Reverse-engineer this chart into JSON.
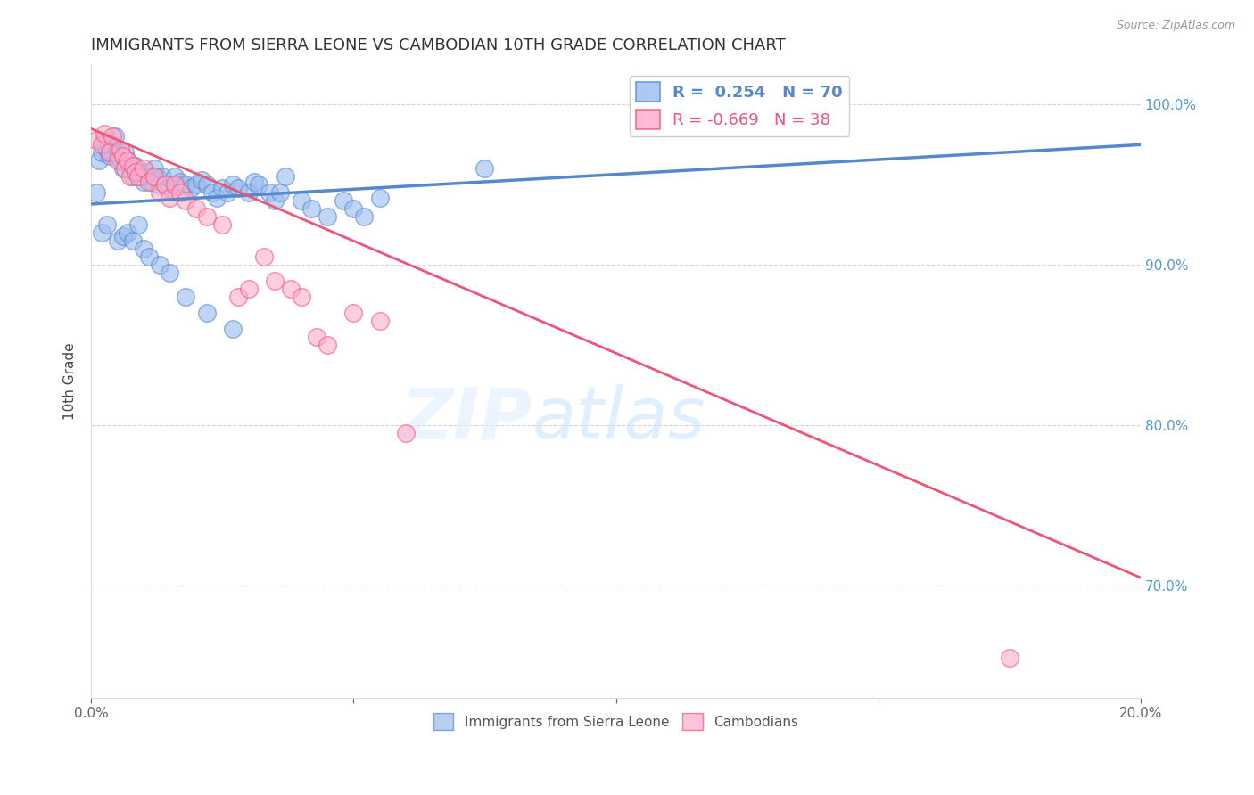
{
  "title": "IMMIGRANTS FROM SIERRA LEONE VS CAMBODIAN 10TH GRADE CORRELATION CHART",
  "source": "Source: ZipAtlas.com",
  "ylabel": "10th Grade",
  "xlim": [
    0.0,
    20.0
  ],
  "ylim": [
    63.0,
    102.5
  ],
  "yticks": [
    70.0,
    80.0,
    90.0,
    100.0
  ],
  "ytick_labels": [
    "70.0%",
    "80.0%",
    "90.0%",
    "100.0%"
  ],
  "blue_color": "#5588CC",
  "pink_color": "#EE5577",
  "blue_fill": "#99BBEE",
  "pink_fill": "#FFAACC",
  "legend_R_blue": "0.254",
  "legend_N_blue": "70",
  "legend_R_pink": "-0.669",
  "legend_N_pink": "38",
  "watermark_zip": "ZIP",
  "watermark_atlas": "atlas",
  "blue_scatter_x": [
    0.1,
    0.15,
    0.2,
    0.25,
    0.3,
    0.35,
    0.4,
    0.45,
    0.5,
    0.55,
    0.6,
    0.65,
    0.7,
    0.75,
    0.8,
    0.85,
    0.9,
    0.95,
    1.0,
    1.05,
    1.1,
    1.15,
    1.2,
    1.25,
    1.3,
    1.35,
    1.4,
    1.5,
    1.6,
    1.7,
    1.8,
    1.9,
    2.0,
    2.1,
    2.2,
    2.3,
    2.4,
    2.5,
    2.6,
    2.7,
    2.8,
    3.0,
    3.1,
    3.2,
    3.4,
    3.5,
    3.6,
    3.7,
    4.0,
    4.2,
    4.5,
    4.8,
    5.0,
    5.2,
    5.5,
    0.2,
    0.3,
    0.5,
    0.6,
    0.7,
    0.8,
    0.9,
    1.0,
    1.1,
    1.3,
    1.5,
    1.8,
    2.2,
    2.7,
    7.5
  ],
  "blue_scatter_y": [
    94.5,
    96.5,
    97.0,
    97.5,
    97.2,
    96.8,
    97.5,
    98.0,
    97.0,
    96.5,
    96.0,
    97.0,
    96.5,
    96.0,
    95.5,
    96.2,
    95.8,
    95.5,
    95.2,
    95.8,
    95.5,
    95.2,
    96.0,
    95.5,
    95.0,
    95.5,
    95.0,
    94.8,
    95.5,
    95.2,
    95.0,
    94.8,
    95.0,
    95.3,
    95.0,
    94.5,
    94.2,
    94.8,
    94.5,
    95.0,
    94.8,
    94.5,
    95.2,
    95.0,
    94.5,
    94.0,
    94.5,
    95.5,
    94.0,
    93.5,
    93.0,
    94.0,
    93.5,
    93.0,
    94.2,
    92.0,
    92.5,
    91.5,
    91.8,
    92.0,
    91.5,
    92.5,
    91.0,
    90.5,
    90.0,
    89.5,
    88.0,
    87.0,
    86.0,
    96.0
  ],
  "pink_scatter_x": [
    0.1,
    0.2,
    0.25,
    0.35,
    0.4,
    0.5,
    0.55,
    0.6,
    0.65,
    0.7,
    0.75,
    0.8,
    0.85,
    0.9,
    1.0,
    1.1,
    1.2,
    1.3,
    1.4,
    1.5,
    1.6,
    1.7,
    1.8,
    2.0,
    2.2,
    2.5,
    2.8,
    3.0,
    3.3,
    3.5,
    3.8,
    4.0,
    4.3,
    4.5,
    5.0,
    5.5,
    6.0,
    17.5
  ],
  "pink_scatter_y": [
    97.8,
    97.5,
    98.2,
    97.0,
    98.0,
    96.5,
    97.2,
    96.8,
    96.0,
    96.5,
    95.5,
    96.2,
    95.8,
    95.5,
    96.0,
    95.2,
    95.5,
    94.5,
    95.0,
    94.2,
    95.0,
    94.5,
    94.0,
    93.5,
    93.0,
    92.5,
    88.0,
    88.5,
    90.5,
    89.0,
    88.5,
    88.0,
    85.5,
    85.0,
    87.0,
    86.5,
    79.5,
    65.5
  ],
  "blue_line_x": [
    0.0,
    20.0
  ],
  "blue_line_y": [
    93.8,
    97.5
  ],
  "pink_line_x": [
    0.0,
    20.0
  ],
  "pink_line_y": [
    98.5,
    70.5
  ],
  "bg_color": "#FFFFFF",
  "grid_color": "#CCCCCC",
  "title_color": "#333333",
  "axis_color": "#666666",
  "right_axis_color": "#5599CC"
}
